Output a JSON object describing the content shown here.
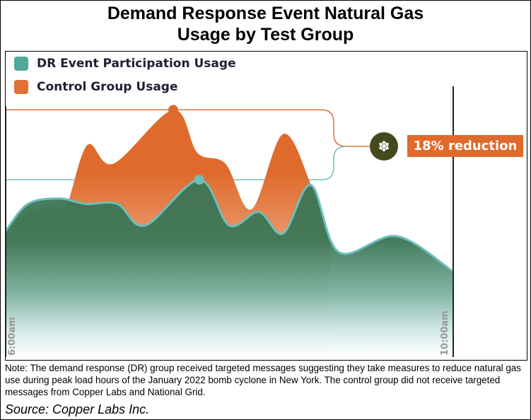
{
  "title_line1": "Demand Response Event Natural Gas",
  "title_line2": "Usage by Test Group",
  "note": "Note: The demand response (DR) group received targeted messages suggesting they take measures to reduce natural gas use during peak load hours of the January 2022 bomb cyclone in New York. The control group did not receive targeted messages from Copper Labs and National Grid.",
  "source": "Source: Copper Labs Inc.",
  "colors": {
    "dr": "#52a89c",
    "dr_line": "#6cbfbb",
    "dr_fill_top": "#3c7656",
    "control": "#e07035",
    "badge_circle": "#454a1e",
    "reduction_box": "#e06a2c"
  },
  "chart_data": {
    "type": "area",
    "title": "Demand Response Event Natural Gas Usage by Test Group",
    "xlabel": "",
    "ylabel": "",
    "x_ticks": [
      "6:00am",
      "10:00am"
    ],
    "x_range": [
      "6:00",
      "10:00"
    ],
    "y_axis_shown": false,
    "grid": false,
    "legend_placement": "top-left",
    "annotation": {
      "label": "18% reduction",
      "icon": "snowflake-icon"
    },
    "series": [
      {
        "name": "Control Group Usage",
        "color": "#e07035",
        "points": [
          [
            "6:00",
            46
          ],
          [
            "6:12",
            54
          ],
          [
            "6:27",
            56
          ],
          [
            "6:33",
            57
          ],
          [
            "6:44",
            79
          ],
          [
            "6:58",
            72
          ],
          [
            "7:30",
            92
          ],
          [
            "7:43",
            76
          ],
          [
            "7:58",
            72
          ],
          [
            "8:12",
            55
          ],
          [
            "8:29",
            83
          ],
          [
            "8:44",
            64
          ],
          [
            "8:54",
            41
          ]
        ],
        "peak": [
          "7:30",
          92
        ]
      },
      {
        "name": "DR Event Participation Usage",
        "color": "#52a89c",
        "points": [
          [
            "6:00",
            47
          ],
          [
            "6:12",
            57
          ],
          [
            "6:29",
            59
          ],
          [
            "6:43",
            57
          ],
          [
            "7:00",
            57
          ],
          [
            "7:15",
            49
          ],
          [
            "7:44",
            66
          ],
          [
            "8:00",
            49
          ],
          [
            "8:16",
            54
          ],
          [
            "8:29",
            46
          ],
          [
            "8:44",
            64
          ],
          [
            "8:59",
            39
          ],
          [
            "9:30",
            45
          ],
          [
            "10:00",
            32
          ]
        ],
        "peak": [
          "7:44",
          66
        ]
      }
    ]
  }
}
